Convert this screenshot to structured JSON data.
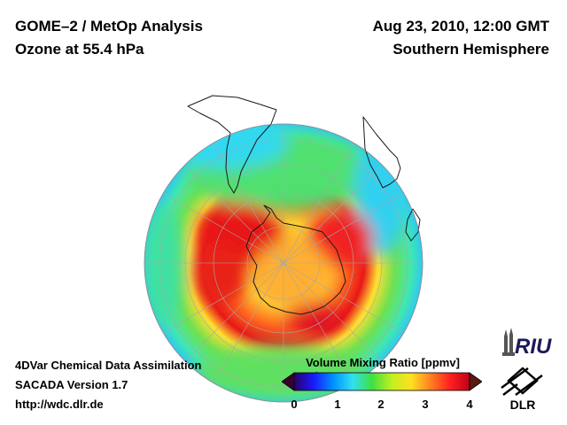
{
  "header": {
    "title_line1": "GOME–2 / MetOp Analysis",
    "title_line2": "Ozone at 55.4 hPa",
    "date": "Aug 23, 2010, 12:00 GMT",
    "hemisphere": "Southern Hemisphere"
  },
  "footer": {
    "line1": "4DVar Chemical Data Assimilation",
    "line2": "SACADA Version 1.7",
    "line3": "http://wdc.dlr.de"
  },
  "colorbar": {
    "title": "Volume Mixing Ratio [ppmv]",
    "ticks": [
      "0",
      "1",
      "2",
      "3",
      "4"
    ],
    "range": [
      0,
      4
    ],
    "colors": [
      "#2a0066",
      "#1a1aff",
      "#0090ff",
      "#30e0f0",
      "#40e040",
      "#c0f020",
      "#ffe020",
      "#ff8020",
      "#ff2020",
      "#c00018"
    ],
    "under_color": "#3a0030",
    "over_color": "#5a1a10"
  },
  "logos": {
    "riu": "RIU",
    "dlr": "DLR",
    "riu_icon": "riu-cathedral-icon",
    "dlr_icon": "dlr-logo-icon"
  },
  "map": {
    "projection": "orthographic-south-pole",
    "value_range": [
      0,
      4
    ],
    "outer_ring_level": 1.4,
    "high_band_level": 3.8,
    "polar_core_level": 2.7
  }
}
